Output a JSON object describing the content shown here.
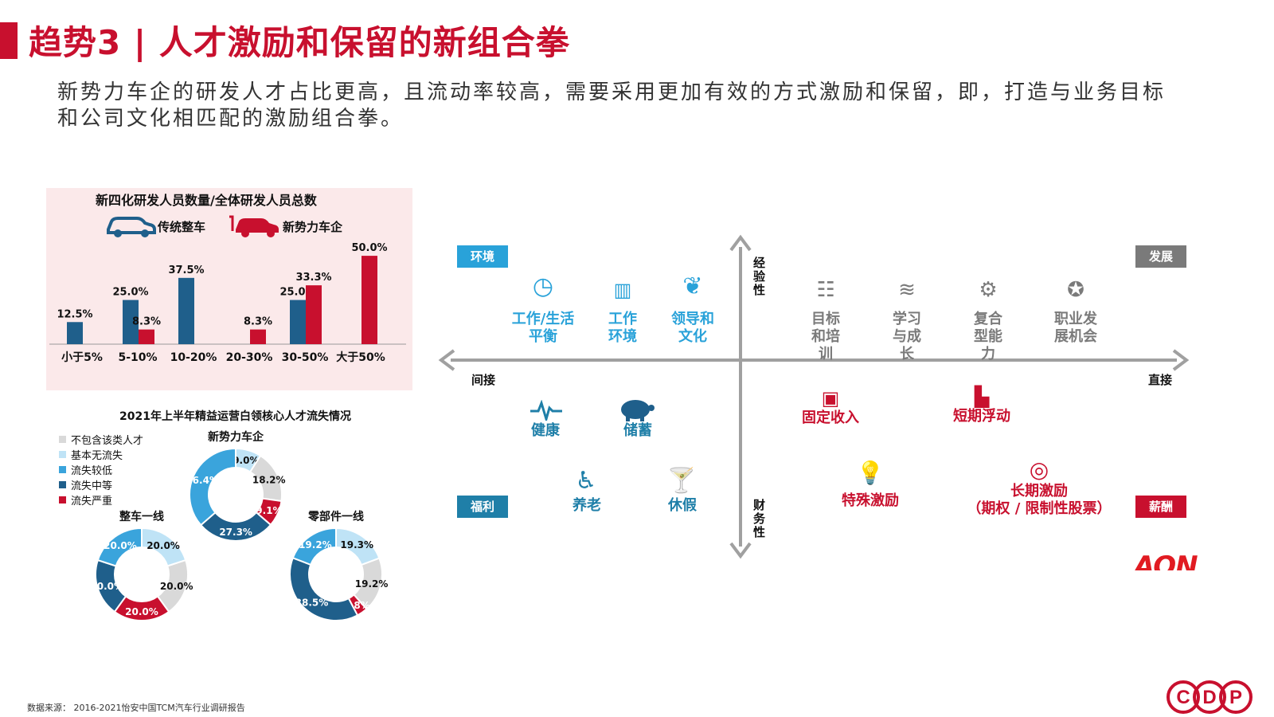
{
  "header": {
    "title": "趋势3 | 人才激励和保留的新组合拳",
    "intro": "新势力车企的研发人才占比更高，且流动率较高，需要采用更加有效的方式激励和保留，即，打造与业务目标和公司文化相匹配的激励组合拳。"
  },
  "bar_panel": {
    "title": "新四化研发人员数量/全体研发人员总数",
    "legend": [
      {
        "label": "传统整车",
        "icon": "car-icon",
        "color": "#1f5f8b"
      },
      {
        "label": "新势力车企",
        "icon": "electric-car-icon",
        "color": "#c8102e"
      }
    ]
  },
  "donut_section": {
    "title": "2021年上半年精益运营白领核心人才流失情况",
    "legend": [
      {
        "label": "不包含该类人才",
        "color": "#d9d9d9"
      },
      {
        "label": "基本无流失",
        "color": "#bfe3f6"
      },
      {
        "label": "流失较低",
        "color": "#3aa4dc"
      },
      {
        "label": "流失中等",
        "color": "#1f5f8b"
      },
      {
        "label": "流失严重",
        "color": "#c8102e"
      }
    ]
  },
  "chart_data": [
    {
      "type": "bar",
      "title": "新四化研发人员数量/全体研发人员总数",
      "categories": [
        "小于5%",
        "5-10%",
        "10-20%",
        "20-30%",
        "30-50%",
        "大于50%"
      ],
      "series": [
        {
          "name": "传统整车",
          "color": "#1f5f8b",
          "values": [
            12.5,
            25.0,
            37.5,
            null,
            25.0,
            null
          ],
          "labels": [
            "12.5%",
            "25.0%",
            "37.5%",
            "",
            "25.0%",
            ""
          ]
        },
        {
          "name": "新势力车企",
          "color": "#c8102e",
          "values": [
            null,
            8.3,
            null,
            8.3,
            33.3,
            50.0
          ],
          "labels": [
            "",
            "8.3%",
            "",
            "8.3%",
            "33.3%",
            "50.0%"
          ]
        }
      ],
      "ylim": [
        0,
        55
      ]
    },
    {
      "type": "pie",
      "title": "新势力车企",
      "slices": [
        {
          "category": "基本无流失",
          "value": 9.0,
          "label": "9.0%",
          "color": "#bfe3f6"
        },
        {
          "category": "不包含该类人才",
          "value": 18.2,
          "label": "18.2%",
          "color": "#d9d9d9"
        },
        {
          "category": "流失严重",
          "value": 9.1,
          "label": "9.1%",
          "color": "#c8102e"
        },
        {
          "category": "流失中等",
          "value": 27.3,
          "label": "27.3%",
          "color": "#1f5f8b"
        },
        {
          "category": "流失较低",
          "value": 36.4,
          "label": "36.4%",
          "color": "#3aa4dc"
        }
      ]
    },
    {
      "type": "pie",
      "title": "整车一线",
      "slices": [
        {
          "category": "基本无流失",
          "value": 20.0,
          "label": "20.0%",
          "color": "#bfe3f6"
        },
        {
          "category": "不包含该类人才",
          "value": 20.0,
          "label": "20.0%",
          "color": "#d9d9d9"
        },
        {
          "category": "流失严重",
          "value": 20.0,
          "label": "20.0%",
          "color": "#c8102e"
        },
        {
          "category": "流失中等",
          "value": 20.0,
          "label": "20.0%",
          "color": "#1f5f8b"
        },
        {
          "category": "流失较低",
          "value": 20.0,
          "label": "20.0%",
          "color": "#3aa4dc"
        }
      ]
    },
    {
      "type": "pie",
      "title": "零部件一线",
      "slices": [
        {
          "category": "基本无流失",
          "value": 19.3,
          "label": "19.3%",
          "color": "#bfe3f6"
        },
        {
          "category": "不包含该类人才",
          "value": 19.2,
          "label": "19.2%",
          "color": "#d9d9d9"
        },
        {
          "category": "流失严重",
          "value": 3.8,
          "label": "3.8%",
          "color": "#c8102e"
        },
        {
          "category": "流失中等",
          "value": 38.5,
          "label": "38.5%",
          "color": "#1f5f8b"
        },
        {
          "category": "流失较低",
          "value": 19.2,
          "label": "19.2%",
          "color": "#3aa4dc"
        }
      ]
    }
  ],
  "matrix": {
    "axis_top": "经验性",
    "axis_bottom": "财务性",
    "axis_left": "间接",
    "axis_right": "直接",
    "corner_tl": "环境",
    "corner_tr": "发展",
    "corner_bl": "福利",
    "corner_br": "薪酬",
    "colors": {
      "environment": "#29a2d9",
      "development": "#7a7a7a",
      "benefits": "#1f7fa8",
      "pay": "#c8102e"
    },
    "environment": [
      {
        "label": "工作/生活平衡",
        "icon": "clock-icon"
      },
      {
        "label": "工作环境",
        "icon": "office-icon"
      },
      {
        "label": "领导和文化",
        "icon": "laurel-icon"
      }
    ],
    "development": [
      {
        "label": "目标和培训",
        "icon": "checklist-icon"
      },
      {
        "label": "学习与成长",
        "icon": "books-icon"
      },
      {
        "label": "复合型能力",
        "icon": "skills-icon"
      },
      {
        "label": "职业发展机会",
        "icon": "award-icon"
      }
    ],
    "benefits": [
      {
        "label": "健康",
        "icon": "heartbeat-icon"
      },
      {
        "label": "储蓄",
        "icon": "piggy-bank-icon"
      },
      {
        "label": "养老",
        "icon": "elderly-icon"
      },
      {
        "label": "休假",
        "icon": "cocktail-icon"
      }
    ],
    "pay": [
      {
        "label": "固定收入",
        "icon": "wallet-icon"
      },
      {
        "label": "短期浮动",
        "icon": "bar-chart-icon"
      },
      {
        "label": "特殊激励",
        "icon": "lightbulb-icon"
      },
      {
        "label": "长期激励\n（期权 / 限制性股票）",
        "icon": "target-icon"
      }
    ],
    "brand": "AON"
  },
  "footer": {
    "source": "数据来源： 2016-2021怡安中国TCM汽车行业调研报告",
    "logo": "CDP"
  }
}
